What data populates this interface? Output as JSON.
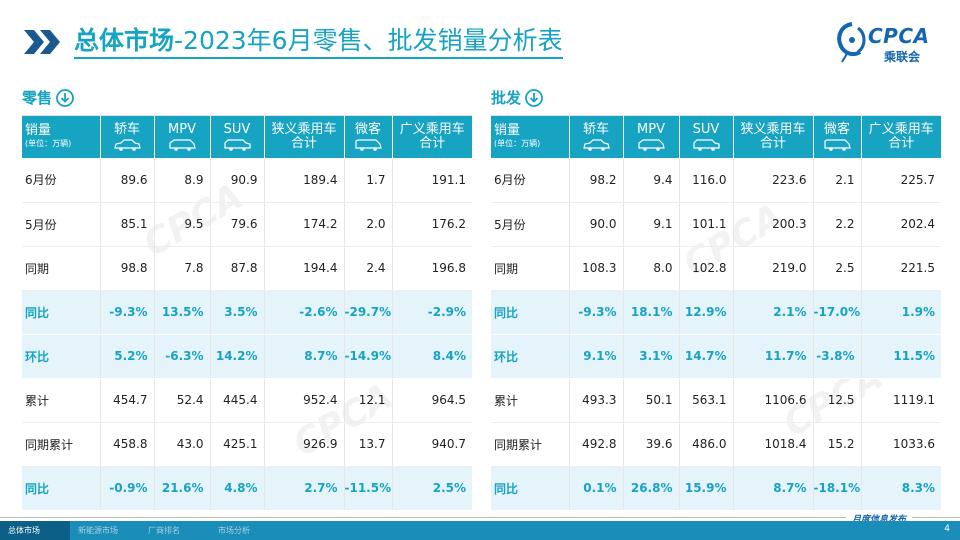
{
  "title": {
    "bold": "总体市场",
    "rest": "-2023年6月零售、批发销量分析表"
  },
  "logo": {
    "text": "CPCA",
    "sub": "乘联会"
  },
  "columns": {
    "first_line1": "销量",
    "first_unit": "(单位：万辆)",
    "sedan": "轿车",
    "mpv": "MPV",
    "suv": "SUV",
    "narrow_total_1": "狭义乘用车",
    "narrow_total_2": "合计",
    "micro": "微客",
    "broad_total_1": "广义乘用车",
    "broad_total_2": "合计"
  },
  "retail": {
    "title": "零售",
    "rows": [
      {
        "label": "6月份",
        "type": "plain",
        "values": [
          "89.6",
          "8.9",
          "90.9",
          "189.4",
          "1.7",
          "191.1"
        ]
      },
      {
        "label": "5月份",
        "type": "plain",
        "values": [
          "85.1",
          "9.5",
          "79.6",
          "174.2",
          "2.0",
          "176.2"
        ]
      },
      {
        "label": "同期",
        "type": "plain",
        "values": [
          "98.8",
          "7.8",
          "87.8",
          "194.4",
          "2.4",
          "196.8"
        ]
      },
      {
        "label": "同比",
        "type": "rate",
        "values": [
          "-9.3%",
          "13.5%",
          "3.5%",
          "-2.6%",
          "-29.7%",
          "-2.9%"
        ]
      },
      {
        "label": "环比",
        "type": "rate",
        "values": [
          "5.2%",
          "-6.3%",
          "14.2%",
          "8.7%",
          "-14.9%",
          "8.4%"
        ]
      },
      {
        "label": "累计",
        "type": "plain",
        "values": [
          "454.7",
          "52.4",
          "445.4",
          "952.4",
          "12.1",
          "964.5"
        ]
      },
      {
        "label": "同期累计",
        "type": "plain",
        "values": [
          "458.8",
          "43.0",
          "425.1",
          "926.9",
          "13.7",
          "940.7"
        ]
      },
      {
        "label": "同比",
        "type": "rate",
        "values": [
          "-0.9%",
          "21.6%",
          "4.8%",
          "2.7%",
          "-11.5%",
          "2.5%"
        ]
      }
    ]
  },
  "wholesale": {
    "title": "批发",
    "rows": [
      {
        "label": "6月份",
        "type": "plain",
        "values": [
          "98.2",
          "9.4",
          "116.0",
          "223.6",
          "2.1",
          "225.7"
        ]
      },
      {
        "label": "5月份",
        "type": "plain",
        "values": [
          "90.0",
          "9.1",
          "101.1",
          "200.3",
          "2.2",
          "202.4"
        ]
      },
      {
        "label": "同期",
        "type": "plain",
        "values": [
          "108.3",
          "8.0",
          "102.8",
          "219.0",
          "2.5",
          "221.5"
        ]
      },
      {
        "label": "同比",
        "type": "rate",
        "values": [
          "-9.3%",
          "18.1%",
          "12.9%",
          "2.1%",
          "-17.0%",
          "1.9%"
        ]
      },
      {
        "label": "环比",
        "type": "rate",
        "values": [
          "9.1%",
          "3.1%",
          "14.7%",
          "11.7%",
          "-3.8%",
          "11.5%"
        ]
      },
      {
        "label": "累计",
        "type": "plain",
        "values": [
          "493.3",
          "50.1",
          "563.1",
          "1106.6",
          "12.5",
          "1119.1"
        ]
      },
      {
        "label": "同期累计",
        "type": "plain",
        "values": [
          "492.8",
          "39.6",
          "486.0",
          "1018.4",
          "15.2",
          "1033.6"
        ]
      },
      {
        "label": "同比",
        "type": "rate",
        "values": [
          "0.1%",
          "26.8%",
          "15.9%",
          "8.7%",
          "-18.1%",
          "8.3%"
        ]
      }
    ]
  },
  "footer": {
    "tabs": [
      "总体市场",
      "新能源市场",
      "厂商排名",
      "市场分析"
    ],
    "active_tab": 0,
    "monthly": "月度信息发布",
    "page": "4"
  },
  "colors": {
    "accent": "#17a3c2",
    "rate_bg": "#e5f3fb",
    "footer": "#1a8db8",
    "brand": "#1566b0"
  },
  "icons": [
    "chevron-double-icon",
    "down-arrow-circle-icon",
    "sedan-icon",
    "mpv-icon",
    "suv-icon",
    "micro-van-icon",
    "cpca-logo-icon"
  ]
}
